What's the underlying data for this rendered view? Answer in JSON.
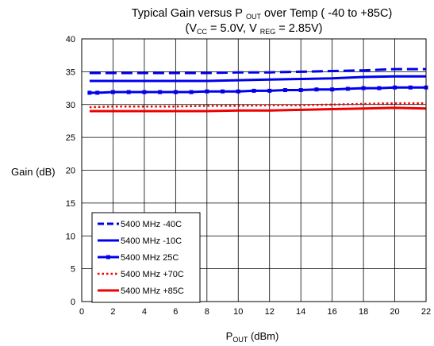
{
  "chart_data": {
    "type": "line",
    "title_line1": {
      "prefix": "Typical Gain versus P",
      "sub": "OUT",
      "suffix": " over Temp ( -40 to +85C)"
    },
    "title_line2": {
      "p1": "(V",
      "s1": "CC",
      "p2": " = 5.0V, V",
      "s2": "REG",
      "p3": " = 2.85V)"
    },
    "ylabel": "Gain (dB)",
    "xlabel": {
      "main": "P",
      "sub": "OUT",
      "suffix": " (dBm)"
    },
    "xlim": [
      0,
      22
    ],
    "ylim": [
      0,
      40
    ],
    "x_ticks": [
      0,
      2,
      4,
      6,
      8,
      10,
      12,
      14,
      16,
      18,
      20,
      22
    ],
    "y_ticks": [
      0,
      5,
      10,
      15,
      20,
      25,
      30,
      35,
      40
    ],
    "grid": true,
    "legend_position": "bottom-left",
    "series": [
      {
        "name": "5400 MHz -40C",
        "color": "#0000ee",
        "style": "dashed",
        "x": [
          0.5,
          2,
          4,
          6,
          8,
          10,
          12,
          14,
          16,
          18,
          20,
          22
        ],
        "y": [
          34.8,
          34.8,
          34.8,
          34.8,
          34.8,
          34.9,
          34.9,
          35.0,
          35.1,
          35.2,
          35.4,
          35.4
        ]
      },
      {
        "name": "5400 MHz -10C",
        "color": "#0000ee",
        "style": "solid",
        "x": [
          0.5,
          2,
          4,
          6,
          8,
          10,
          12,
          14,
          16,
          18,
          20,
          22
        ],
        "y": [
          33.6,
          33.6,
          33.6,
          33.6,
          33.6,
          33.7,
          33.8,
          33.9,
          34.0,
          34.2,
          34.3,
          34.3
        ]
      },
      {
        "name": "5400 MHz 25C",
        "color": "#0000ee",
        "style": "solid-markers",
        "x": [
          0.5,
          1,
          2,
          3,
          4,
          5,
          6,
          7,
          8,
          9,
          10,
          11,
          12,
          13,
          14,
          15,
          16,
          17,
          18,
          19,
          20,
          21,
          22
        ],
        "y": [
          31.8,
          31.8,
          31.9,
          31.9,
          31.9,
          31.9,
          31.9,
          31.9,
          32.0,
          32.0,
          32.0,
          32.1,
          32.1,
          32.2,
          32.2,
          32.3,
          32.3,
          32.4,
          32.5,
          32.5,
          32.6,
          32.6,
          32.6
        ]
      },
      {
        "name": "5400 MHz +70C",
        "color": "#ee0000",
        "style": "dotted",
        "x": [
          0.5,
          2,
          4,
          6,
          8,
          10,
          12,
          14,
          16,
          18,
          20,
          22
        ],
        "y": [
          29.6,
          29.7,
          29.7,
          29.7,
          29.8,
          29.8,
          29.9,
          29.9,
          30.0,
          30.1,
          30.2,
          30.2
        ]
      },
      {
        "name": "5400 MHz +85C",
        "color": "#ee0000",
        "style": "solid",
        "x": [
          0.5,
          2,
          4,
          6,
          8,
          10,
          12,
          14,
          16,
          18,
          20,
          22
        ],
        "y": [
          29.0,
          29.0,
          29.0,
          29.0,
          29.0,
          29.1,
          29.1,
          29.2,
          29.3,
          29.4,
          29.5,
          29.4
        ]
      }
    ]
  }
}
